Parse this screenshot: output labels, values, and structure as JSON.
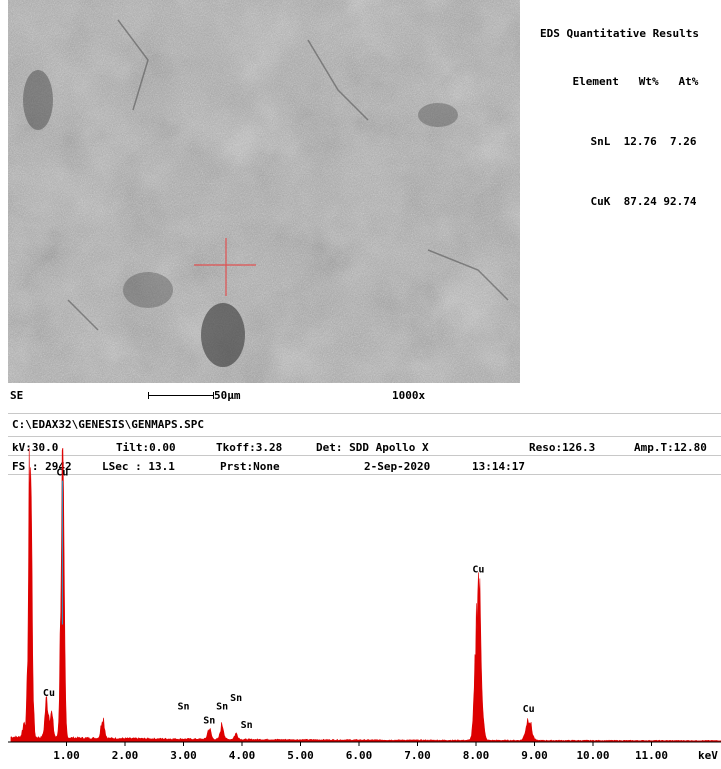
{
  "eds_results": {
    "title": "EDS Quantitative Results",
    "header": [
      "Element",
      "Wt%",
      "At%"
    ],
    "rows": [
      [
        "SnL",
        "12.76",
        "7.26"
      ],
      [
        "CuK",
        "87.24",
        "92.74"
      ]
    ]
  },
  "sem": {
    "mode": "SE",
    "scale_label": "50µm",
    "magnification": "1000x"
  },
  "file_path": "C:\\EDAX32\\GENESIS\\GENMAPS.SPC",
  "params": {
    "kv": "kV:30.0",
    "tilt": "Tilt:0.00",
    "tkoff": "Tkoff:3.28",
    "det": "Det: SDD Apollo X",
    "reso": "Reso:126.3",
    "amp": "Amp.T:12.80",
    "fs": "FS : 2942",
    "lsec": "LSec : 13.1",
    "prst": "Prst:None",
    "date": "2-Sep-2020",
    "time": "13:14:17"
  },
  "colors": {
    "spectrum": "#dd0000",
    "marker": "#1fa0c8",
    "crosshair": "#e05050"
  },
  "chart_data": {
    "type": "area",
    "xlabel": "keV",
    "xlim": [
      0,
      12.5
    ],
    "x_ticks": [
      "1.00",
      "2.00",
      "3.00",
      "4.00",
      "5.00",
      "6.00",
      "7.00",
      "8.00",
      "9.00",
      "10.00",
      "11.00"
    ],
    "ylim": [
      0,
      2942
    ],
    "peaks": [
      {
        "x": 0.28,
        "y": 150
      },
      {
        "x": 0.38,
        "y": 2942
      },
      {
        "x": 0.66,
        "y": 380
      },
      {
        "x": 0.74,
        "y": 250
      },
      {
        "x": 0.93,
        "y": 2610
      },
      {
        "x": 1.62,
        "y": 220
      },
      {
        "x": 3.44,
        "y": 110
      },
      {
        "x": 3.66,
        "y": 150
      },
      {
        "x": 3.9,
        "y": 60
      },
      {
        "x": 8.04,
        "y": 1650
      },
      {
        "x": 8.9,
        "y": 230
      }
    ],
    "annotations": [
      {
        "label": "Cu",
        "x": 0.93,
        "y": 2690,
        "marker": true
      },
      {
        "label": "Cu",
        "x": 0.7,
        "y": 440
      },
      {
        "label": "Sn",
        "x": 3.0,
        "y": 300
      },
      {
        "label": "Sn",
        "x": 3.44,
        "y": 160
      },
      {
        "label": "Sn",
        "x": 3.66,
        "y": 300
      },
      {
        "label": "Sn",
        "x": 3.9,
        "y": 390
      },
      {
        "label": "Sn",
        "x": 4.08,
        "y": 110
      },
      {
        "label": "Cu",
        "x": 8.04,
        "y": 1700
      },
      {
        "label": "Cu",
        "x": 8.9,
        "y": 275
      }
    ]
  }
}
